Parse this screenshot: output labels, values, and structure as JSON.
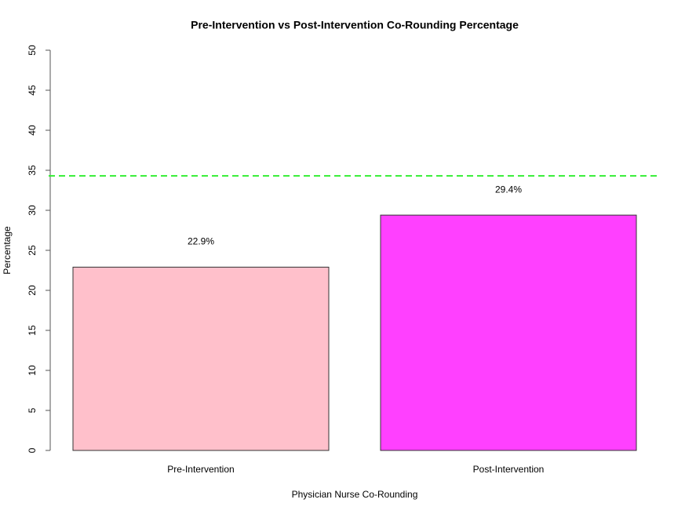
{
  "chart_data": {
    "type": "bar",
    "title": "Pre-Intervention vs Post-Intervention Co-Rounding Percentage",
    "x_label": "Physician Nurse Co-Rounding",
    "y_label": "Percentage",
    "categories": [
      "Pre-Intervention",
      "Post-Intervention"
    ],
    "values": [
      22.9,
      29.4
    ],
    "value_labels": [
      "22.9%",
      "29.4%"
    ],
    "colors": [
      "#ffc0cb",
      "#ff40ff"
    ],
    "reference_line": 34.3,
    "reference_line_color": "#33ee33",
    "ylim": [
      0,
      50
    ],
    "yticks": [
      0,
      5,
      10,
      15,
      20,
      25,
      30,
      35,
      40,
      45,
      50
    ]
  }
}
